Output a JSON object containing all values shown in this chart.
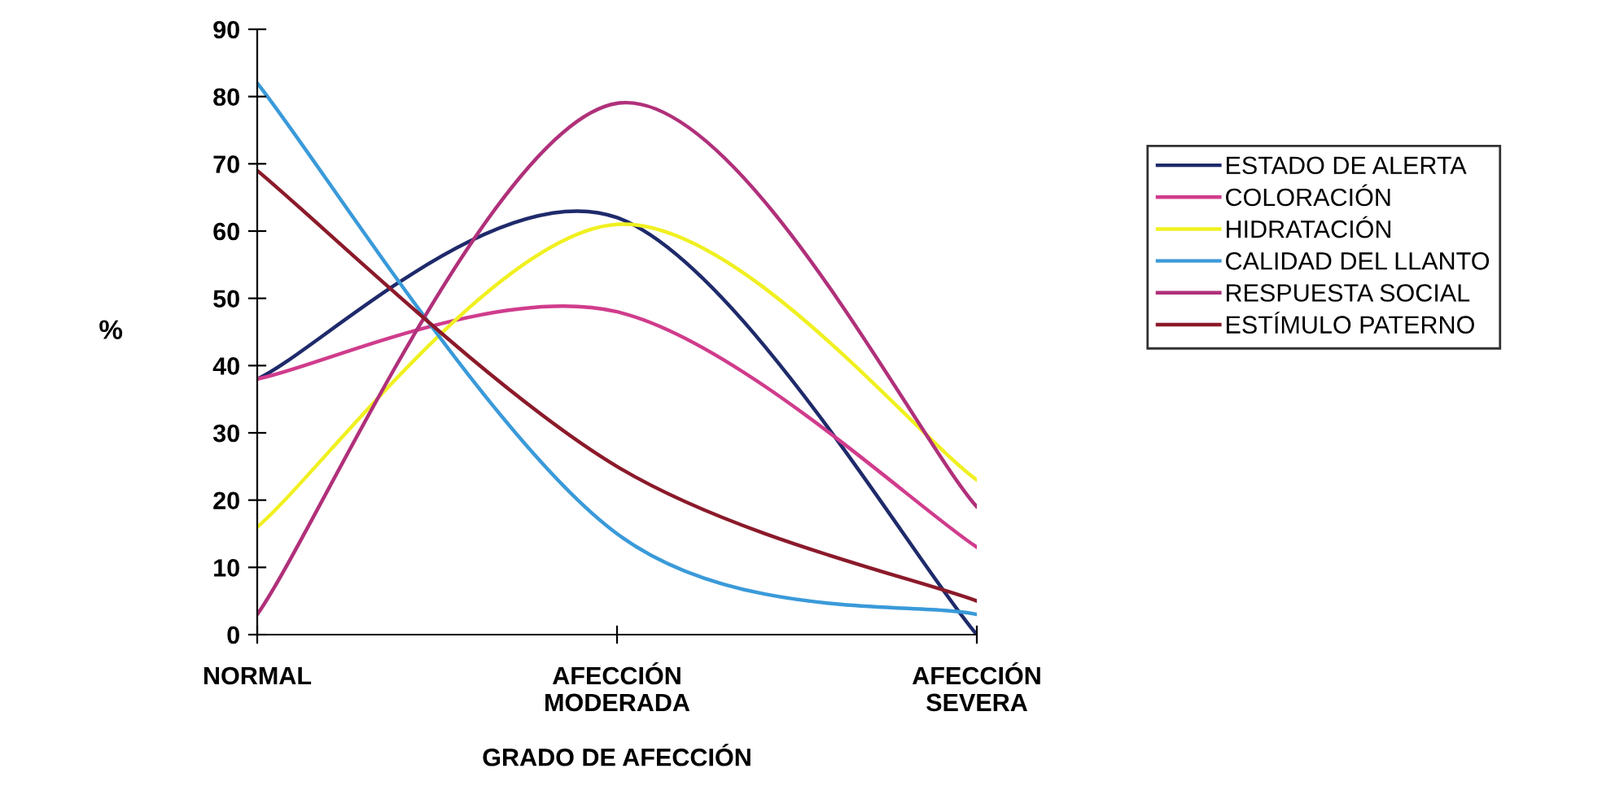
{
  "chart_data": {
    "type": "line",
    "xlabel": "GRADO DE AFECCIÓN",
    "ylabel": "%",
    "categories": [
      "NORMAL",
      "AFECCIÓN\nMODERADA",
      "AFECCIÓN\nSEVERA"
    ],
    "series": [
      {
        "name": "ESTADO DE ALERTA",
        "color": "#1f2a6b",
        "values": [
          38,
          62,
          0
        ]
      },
      {
        "name": "COLORACIÓN",
        "color": "#d03c8c",
        "values": [
          38,
          48,
          13
        ]
      },
      {
        "name": "HIDRATACIÓN",
        "color": "#f0f020",
        "values": [
          16,
          61,
          23
        ]
      },
      {
        "name": "CALIDAD DEL LLANTO",
        "color": "#3a9ad9",
        "values": [
          82,
          15,
          3
        ]
      },
      {
        "name": "RESPUESTA SOCIAL",
        "color": "#b0307a",
        "values": [
          3,
          79,
          19
        ]
      },
      {
        "name": "ESTÍMULO PATERNO",
        "color": "#8b1a2a",
        "values": [
          69,
          25,
          5
        ]
      }
    ],
    "ylim": [
      0,
      90
    ],
    "yticks": [
      0,
      10,
      20,
      30,
      40,
      50,
      60,
      70,
      80,
      90
    ],
    "legend": "right",
    "marker": "none",
    "line_style": "solid",
    "grid": false
  }
}
